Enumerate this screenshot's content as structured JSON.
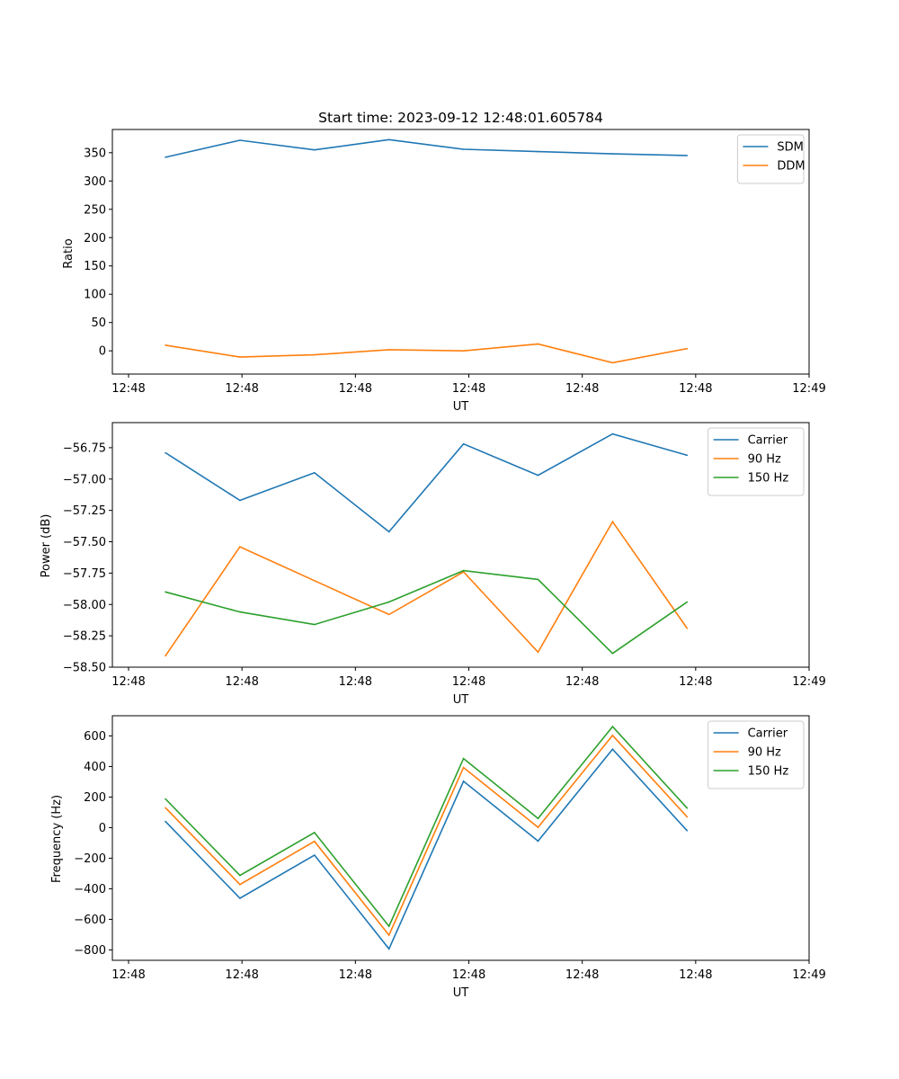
{
  "figure_title": "Start time: 2023-09-12 12:48:01.605784",
  "chart_data": [
    {
      "type": "line",
      "title": "Start time: 2023-09-12 12:48:01.605784",
      "xlabel": "UT",
      "ylabel": "Ratio",
      "x_tick_labels": [
        "12:48",
        "12:48",
        "12:48",
        "12:48",
        "12:48",
        "12:48",
        "12:49"
      ],
      "x_range": [
        -0.47,
        5.7
      ],
      "x": [
        0,
        0.66,
        1.32,
        1.98,
        2.64,
        3.3,
        3.96,
        4.62
      ],
      "ylim": [
        -41,
        391
      ],
      "yticks": [
        0,
        50,
        100,
        150,
        200,
        250,
        300,
        350
      ],
      "legend_location": "top-right",
      "series": [
        {
          "name": "SDM",
          "color": "#1f77b4",
          "values": [
            342,
            372,
            355,
            373,
            356,
            352,
            348,
            345
          ]
        },
        {
          "name": "DDM",
          "color": "#ff7f0e",
          "values": [
            10,
            -11,
            -7,
            2,
            0,
            12,
            -21,
            4
          ]
        }
      ]
    },
    {
      "type": "line",
      "title": "",
      "xlabel": "UT",
      "ylabel": "Power (dB)",
      "x_tick_labels": [
        "12:48",
        "12:48",
        "12:48",
        "12:48",
        "12:48",
        "12:48",
        "12:49"
      ],
      "x_range": [
        -0.47,
        5.7
      ],
      "x": [
        0,
        0.66,
        1.32,
        1.98,
        2.64,
        3.3,
        3.96,
        4.62
      ],
      "ylim": [
        -58.5,
        -56.55
      ],
      "yticks": [
        -58.5,
        -58.25,
        -58.0,
        -57.75,
        -57.5,
        -57.25,
        -57.0,
        -56.75
      ],
      "ytick_labels": [
        "−58.50",
        "−58.25",
        "−58.00",
        "−57.75",
        "−57.50",
        "−57.25",
        "−57.00",
        "−56.75"
      ],
      "legend_location": "top-right",
      "series": [
        {
          "name": "Carrier",
          "color": "#1f77b4",
          "values": [
            -56.79,
            -57.17,
            -56.95,
            -57.42,
            -56.72,
            -56.97,
            -56.64,
            -56.81
          ]
        },
        {
          "name": "90 Hz",
          "color": "#ff7f0e",
          "values": [
            -58.41,
            -57.54,
            -57.81,
            -58.08,
            -57.74,
            -58.38,
            -57.34,
            -58.19
          ]
        },
        {
          "name": "150 Hz",
          "color": "#2ca02c",
          "values": [
            -57.9,
            -58.06,
            -58.16,
            -57.98,
            -57.73,
            -57.8,
            -58.39,
            -57.98
          ]
        }
      ]
    },
    {
      "type": "line",
      "title": "",
      "xlabel": "UT",
      "ylabel": "Frequency (Hz)",
      "x_tick_labels": [
        "12:48",
        "12:48",
        "12:48",
        "12:48",
        "12:48",
        "12:48",
        "12:49"
      ],
      "x_range": [
        -0.47,
        5.7
      ],
      "x": [
        0,
        0.66,
        1.32,
        1.98,
        2.64,
        3.3,
        3.96,
        4.62
      ],
      "ylim": [
        -868,
        732
      ],
      "yticks": [
        -800,
        -600,
        -400,
        -200,
        0,
        200,
        400,
        600
      ],
      "ytick_labels": [
        "−800",
        "−600",
        "−400",
        "−200",
        "0",
        "200",
        "400",
        "600"
      ],
      "legend_location": "top-right",
      "series": [
        {
          "name": "Carrier",
          "color": "#1f77b4",
          "values": [
            40,
            -462,
            -180,
            -793,
            303,
            -88,
            513,
            -20
          ]
        },
        {
          "name": "90 Hz",
          "color": "#ff7f0e",
          "values": [
            130,
            -372,
            -90,
            -703,
            393,
            2,
            603,
            70
          ]
        },
        {
          "name": "150 Hz",
          "color": "#2ca02c",
          "values": [
            188,
            -313,
            -32,
            -645,
            452,
            60,
            661,
            128
          ]
        }
      ]
    }
  ]
}
